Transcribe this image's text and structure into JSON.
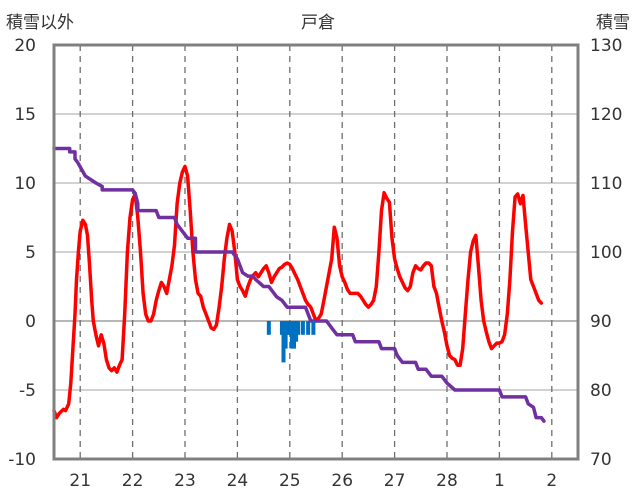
{
  "chart_data": {
    "type": "line",
    "title": "戸倉",
    "ylabel_left": "積雪以外",
    "ylabel_right": "積雪",
    "x_ticks": [
      "21",
      "22",
      "23",
      "24",
      "25",
      "26",
      "27",
      "28",
      "1",
      "2"
    ],
    "x_range": [
      20.5,
      30.5
    ],
    "y_left": {
      "range": [
        -10,
        20
      ],
      "ticks": [
        -10,
        -5,
        0,
        5,
        10,
        15,
        20
      ]
    },
    "y_right": {
      "range": [
        70,
        130
      ],
      "ticks": [
        70,
        80,
        90,
        100,
        110,
        120,
        130
      ]
    },
    "grid": true,
    "colors": {
      "temperature": "#ff0000",
      "snow_depth": "#7030a0",
      "precipitation": "#0070c0"
    },
    "series": [
      {
        "key": "temperature",
        "axis": "left",
        "points": [
          [
            20.5,
            -6.5
          ],
          [
            20.55,
            -7
          ],
          [
            20.6,
            -6.7
          ],
          [
            20.68,
            -6.4
          ],
          [
            20.72,
            -6.5
          ],
          [
            20.78,
            -6
          ],
          [
            20.82,
            -4.5
          ],
          [
            20.86,
            -2
          ],
          [
            20.9,
            0.5
          ],
          [
            20.93,
            3
          ],
          [
            20.97,
            5.2
          ],
          [
            21.0,
            6.5
          ],
          [
            21.05,
            7.3
          ],
          [
            21.1,
            7
          ],
          [
            21.14,
            6.2
          ],
          [
            21.18,
            4
          ],
          [
            21.22,
            1.5
          ],
          [
            21.25,
            0
          ],
          [
            21.3,
            -1
          ],
          [
            21.35,
            -1.8
          ],
          [
            21.4,
            -1
          ],
          [
            21.45,
            -1.6
          ],
          [
            21.5,
            -2.8
          ],
          [
            21.55,
            -3.4
          ],
          [
            21.6,
            -3.6
          ],
          [
            21.65,
            -3.4
          ],
          [
            21.7,
            -3.7
          ],
          [
            21.75,
            -3.2
          ],
          [
            21.8,
            -2.8
          ],
          [
            21.85,
            0.5
          ],
          [
            21.9,
            5
          ],
          [
            21.95,
            7.5
          ],
          [
            22.0,
            8.8
          ],
          [
            22.05,
            9.2
          ],
          [
            22.1,
            7.5
          ],
          [
            22.15,
            5
          ],
          [
            22.2,
            2
          ],
          [
            22.25,
            0.5
          ],
          [
            22.3,
            0
          ],
          [
            22.35,
            0
          ],
          [
            22.4,
            0.5
          ],
          [
            22.45,
            1.5
          ],
          [
            22.5,
            2.2
          ],
          [
            22.55,
            2.8
          ],
          [
            22.6,
            2.5
          ],
          [
            22.65,
            2
          ],
          [
            22.7,
            3
          ],
          [
            22.75,
            4
          ],
          [
            22.8,
            5.5
          ],
          [
            22.85,
            8.5
          ],
          [
            22.9,
            10
          ],
          [
            22.95,
            10.8
          ],
          [
            23.0,
            11.2
          ],
          [
            23.05,
            10.5
          ],
          [
            23.1,
            8
          ],
          [
            23.15,
            5
          ],
          [
            23.2,
            3
          ],
          [
            23.25,
            2
          ],
          [
            23.3,
            1.8
          ],
          [
            23.35,
            1
          ],
          [
            23.4,
            0.5
          ],
          [
            23.45,
            0
          ],
          [
            23.5,
            -0.5
          ],
          [
            23.55,
            -0.6
          ],
          [
            23.6,
            -0.3
          ],
          [
            23.65,
            1
          ],
          [
            23.7,
            2.5
          ],
          [
            23.75,
            4.5
          ],
          [
            23.8,
            6
          ],
          [
            23.85,
            7
          ],
          [
            23.9,
            6.5
          ],
          [
            23.95,
            5
          ],
          [
            24.0,
            3
          ],
          [
            24.05,
            2.5
          ],
          [
            24.1,
            2.2
          ],
          [
            24.15,
            1.8
          ],
          [
            24.2,
            2.5
          ],
          [
            24.25,
            3
          ],
          [
            24.3,
            3.3
          ],
          [
            24.35,
            3.5
          ],
          [
            24.4,
            3.2
          ],
          [
            24.45,
            3.5
          ],
          [
            24.5,
            3.8
          ],
          [
            24.55,
            4
          ],
          [
            24.6,
            3.5
          ],
          [
            24.65,
            2.8
          ],
          [
            24.7,
            3.2
          ],
          [
            24.75,
            3.5
          ],
          [
            24.8,
            3.8
          ],
          [
            24.85,
            3.9
          ],
          [
            24.9,
            4.1
          ],
          [
            24.95,
            4.2
          ],
          [
            25.0,
            4.1
          ],
          [
            25.05,
            3.8
          ],
          [
            25.1,
            3.4
          ],
          [
            25.15,
            3
          ],
          [
            25.2,
            2.5
          ],
          [
            25.25,
            2
          ],
          [
            25.3,
            1.5
          ],
          [
            25.35,
            1.2
          ],
          [
            25.4,
            1
          ],
          [
            25.45,
            0.5
          ],
          [
            25.5,
            0
          ],
          [
            25.55,
            0.2
          ],
          [
            25.6,
            0.5
          ],
          [
            25.65,
            1.5
          ],
          [
            25.7,
            2.5
          ],
          [
            25.75,
            3.5
          ],
          [
            25.8,
            4.5
          ],
          [
            25.85,
            6.8
          ],
          [
            25.9,
            6
          ],
          [
            25.95,
            4
          ],
          [
            26.0,
            3.2
          ],
          [
            26.05,
            2.8
          ],
          [
            26.1,
            2.3
          ],
          [
            26.15,
            2
          ],
          [
            26.2,
            2
          ],
          [
            26.25,
            2
          ],
          [
            26.3,
            2
          ],
          [
            26.35,
            1.8
          ],
          [
            26.4,
            1.5
          ],
          [
            26.45,
            1.2
          ],
          [
            26.5,
            1
          ],
          [
            26.55,
            1.2
          ],
          [
            26.6,
            1.5
          ],
          [
            26.65,
            2.5
          ],
          [
            26.7,
            5
          ],
          [
            26.75,
            8
          ],
          [
            26.8,
            9.3
          ],
          [
            26.85,
            8.9
          ],
          [
            26.9,
            8.6
          ],
          [
            26.95,
            6
          ],
          [
            27.0,
            4.5
          ],
          [
            27.05,
            3.8
          ],
          [
            27.1,
            3.2
          ],
          [
            27.15,
            2.8
          ],
          [
            27.2,
            2.4
          ],
          [
            27.25,
            2.2
          ],
          [
            27.3,
            2.5
          ],
          [
            27.35,
            3.5
          ],
          [
            27.4,
            4
          ],
          [
            27.45,
            3.8
          ],
          [
            27.5,
            3.7
          ],
          [
            27.55,
            4
          ],
          [
            27.6,
            4.2
          ],
          [
            27.65,
            4.2
          ],
          [
            27.7,
            4
          ],
          [
            27.75,
            2.5
          ],
          [
            27.8,
            2
          ],
          [
            27.85,
            1
          ],
          [
            27.9,
            0
          ],
          [
            27.95,
            -0.8
          ],
          [
            28.0,
            -1.8
          ],
          [
            28.05,
            -2.5
          ],
          [
            28.1,
            -2.7
          ],
          [
            28.15,
            -2.8
          ],
          [
            28.2,
            -3.2
          ],
          [
            28.25,
            -3.2
          ],
          [
            28.3,
            -2
          ],
          [
            28.35,
            0.5
          ],
          [
            28.4,
            3
          ],
          [
            28.45,
            5
          ],
          [
            28.5,
            5.8
          ],
          [
            28.55,
            6.2
          ],
          [
            28.6,
            4
          ],
          [
            28.65,
            1.5
          ],
          [
            28.7,
            0
          ],
          [
            28.75,
            -0.8
          ],
          [
            28.8,
            -1.5
          ],
          [
            28.85,
            -2
          ],
          [
            28.9,
            -1.8
          ],
          [
            28.95,
            -1.6
          ],
          [
            29.0,
            -1.6
          ],
          [
            29.05,
            -1.5
          ],
          [
            29.1,
            -1
          ],
          [
            29.15,
            0.5
          ],
          [
            29.2,
            3
          ],
          [
            29.25,
            6.5
          ],
          [
            29.3,
            9
          ],
          [
            29.35,
            9.2
          ],
          [
            29.4,
            8.5
          ],
          [
            29.45,
            9.1
          ],
          [
            29.5,
            7
          ],
          [
            29.55,
            5
          ],
          [
            29.6,
            3
          ],
          [
            29.65,
            2.5
          ],
          [
            29.7,
            2
          ],
          [
            29.75,
            1.5
          ],
          [
            29.8,
            1.3
          ]
        ]
      },
      {
        "key": "snow_depth",
        "axis": "right",
        "points": [
          [
            20.5,
            115
          ],
          [
            20.8,
            115
          ],
          [
            20.8,
            114.5
          ],
          [
            20.9,
            114.5
          ],
          [
            20.9,
            113.5
          ],
          [
            20.95,
            113
          ],
          [
            21.1,
            111
          ],
          [
            21.3,
            110
          ],
          [
            21.3,
            110
          ],
          [
            21.42,
            109.5
          ],
          [
            21.42,
            109
          ],
          [
            21.5,
            109
          ],
          [
            21.55,
            109
          ],
          [
            22.0,
            109
          ],
          [
            22.05,
            108.5
          ],
          [
            22.1,
            107
          ],
          [
            22.1,
            106
          ],
          [
            22.45,
            106
          ],
          [
            22.5,
            105
          ],
          [
            22.8,
            105
          ],
          [
            22.85,
            104
          ],
          [
            22.95,
            103
          ],
          [
            23.05,
            102
          ],
          [
            23.2,
            102
          ],
          [
            23.2,
            100
          ],
          [
            23.9,
            100
          ],
          [
            24.0,
            99
          ],
          [
            24.05,
            98
          ],
          [
            24.1,
            97
          ],
          [
            24.2,
            96.5
          ],
          [
            24.3,
            96.5
          ],
          [
            24.35,
            96
          ],
          [
            24.5,
            95
          ],
          [
            24.6,
            95
          ],
          [
            24.7,
            94
          ],
          [
            24.75,
            93.5
          ],
          [
            24.85,
            93
          ],
          [
            24.95,
            92
          ],
          [
            25.3,
            92
          ],
          [
            25.4,
            90
          ],
          [
            25.5,
            90
          ],
          [
            25.6,
            90
          ],
          [
            25.7,
            90
          ],
          [
            25.8,
            89
          ],
          [
            25.9,
            88
          ],
          [
            26.2,
            88
          ],
          [
            26.25,
            87
          ],
          [
            26.5,
            87
          ],
          [
            26.7,
            87
          ],
          [
            26.75,
            86
          ],
          [
            26.85,
            86
          ],
          [
            27.0,
            86
          ],
          [
            27.05,
            85
          ],
          [
            27.15,
            84
          ],
          [
            27.4,
            84
          ],
          [
            27.45,
            83
          ],
          [
            27.6,
            83
          ],
          [
            27.7,
            82
          ],
          [
            27.9,
            82
          ],
          [
            28.0,
            81
          ],
          [
            28.15,
            80
          ],
          [
            29.0,
            80
          ],
          [
            29.05,
            79
          ],
          [
            29.4,
            79
          ],
          [
            29.5,
            79
          ],
          [
            29.55,
            78
          ],
          [
            29.65,
            77.5
          ],
          [
            29.7,
            76
          ],
          [
            29.8,
            76
          ],
          [
            29.85,
            75.5
          ]
        ]
      },
      {
        "key": "precipitation",
        "axis": "left",
        "bars": [
          [
            24.6,
            -1
          ],
          [
            24.85,
            -1
          ],
          [
            24.88,
            -3
          ],
          [
            24.92,
            -2
          ],
          [
            24.96,
            -1
          ],
          [
            25.0,
            -1
          ],
          [
            25.04,
            -2
          ],
          [
            25.08,
            -2
          ],
          [
            25.12,
            -1.5
          ],
          [
            25.16,
            -1
          ],
          [
            25.25,
            -1
          ],
          [
            25.35,
            -1
          ],
          [
            25.45,
            -1
          ]
        ]
      }
    ]
  }
}
